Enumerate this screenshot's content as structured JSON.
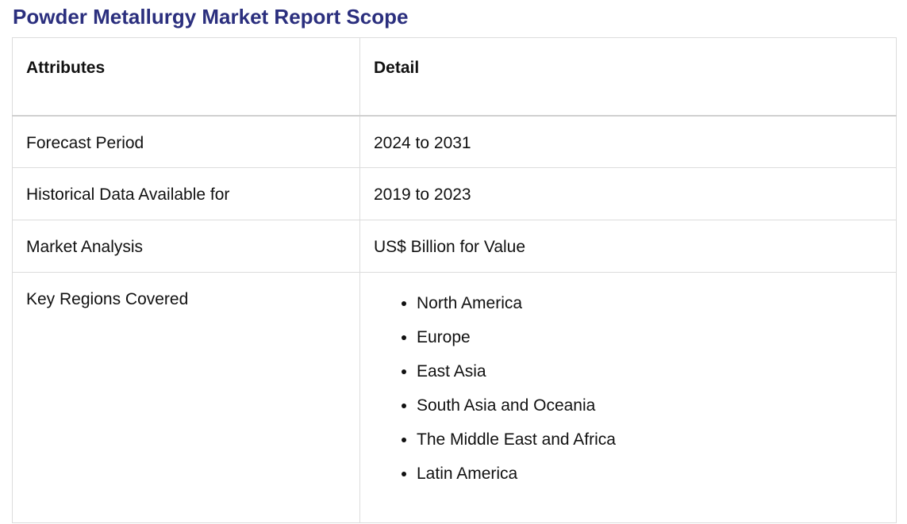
{
  "page": {
    "title": "Powder Metallurgy Market Report Scope"
  },
  "table": {
    "headers": {
      "attributes": "Attributes",
      "detail": "Detail"
    },
    "rows": [
      {
        "attribute": "Forecast Period",
        "detail": "2024 to 2031"
      },
      {
        "attribute": "Historical Data Available for",
        "detail": "2019 to 2023"
      },
      {
        "attribute": "Market Analysis",
        "detail": "US$ Billion for Value"
      }
    ],
    "regions": {
      "attribute": "Key Regions Covered",
      "items": [
        "North America",
        "Europe",
        "East Asia",
        "South Asia and Oceania",
        "The Middle East and Africa",
        "Latin America"
      ]
    }
  },
  "colors": {
    "title": "#2b2f7e",
    "border": "#dcdcdc",
    "text": "#111111"
  }
}
